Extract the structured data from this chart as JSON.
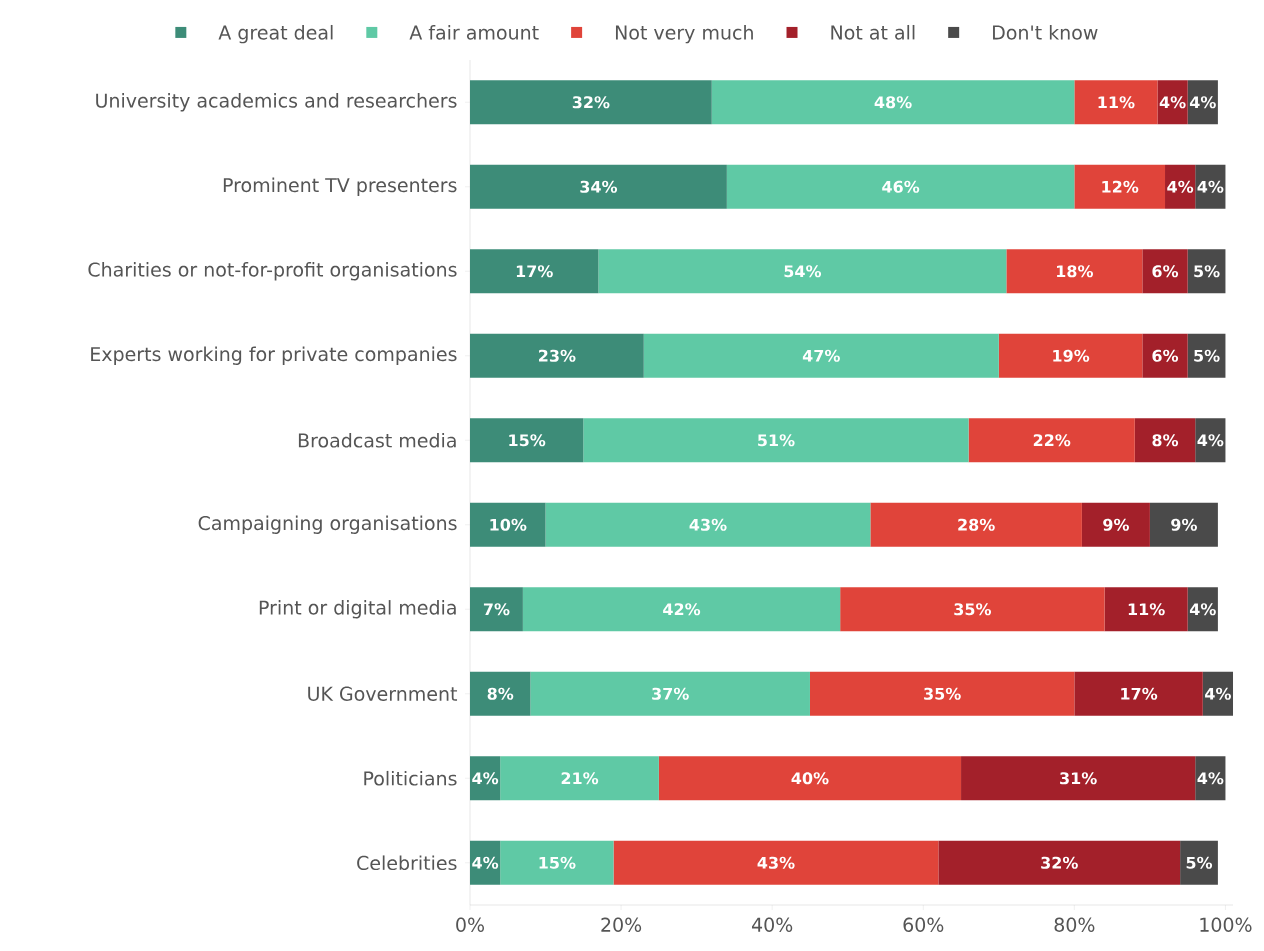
{
  "chart_data": {
    "type": "bar",
    "orientation": "horizontal",
    "stacked": true,
    "categories": [
      "University academics and researchers",
      "Prominent TV presenters",
      "Charities or not-for-profit organisations",
      "Experts working for private companies",
      "Broadcast media",
      "Campaigning organisations",
      "Print or digital media",
      "UK Government",
      "Politicians",
      "Celebrities"
    ],
    "series": [
      {
        "name": "A great deal",
        "color": "#3d8c78",
        "values": [
          32,
          34,
          17,
          23,
          15,
          10,
          7,
          8,
          4,
          4
        ],
        "value_labels": [
          "32%",
          "34%",
          "17%",
          "23%",
          "15%",
          "10%",
          "7%",
          "8%",
          "4%",
          "4%"
        ]
      },
      {
        "name": "A fair amount",
        "color": "#5fc9a5",
        "values": [
          48,
          46,
          54,
          47,
          51,
          43,
          42,
          37,
          21,
          15
        ],
        "value_labels": [
          "48%",
          "46%",
          "54%",
          "47%",
          "51%",
          "43%",
          "42%",
          "37%",
          "21%",
          "15%"
        ]
      },
      {
        "name": "Not very much",
        "color": "#e0443a",
        "values": [
          11,
          12,
          18,
          19,
          22,
          28,
          35,
          35,
          40,
          43
        ],
        "value_labels": [
          "11%",
          "12%",
          "18%",
          "19%",
          "22%",
          "28%",
          "35%",
          "35%",
          "40%",
          "43%"
        ]
      },
      {
        "name": "Not at all",
        "color": "#a3202a",
        "values": [
          4,
          4,
          6,
          6,
          8,
          9,
          11,
          17,
          31,
          32
        ],
        "value_labels": [
          "4%",
          "4%",
          "6%",
          "6%",
          "8%",
          "9%",
          "11%",
          "17%",
          "31%",
          "32%"
        ]
      },
      {
        "name": "Don't know",
        "color": "#4a4a4a",
        "values": [
          4,
          4,
          5,
          5,
          4,
          9,
          4,
          4,
          4,
          5
        ],
        "value_labels": [
          "4%",
          "4%",
          "5%",
          "5%",
          "4%",
          "9%",
          "4%",
          "4%",
          "4%",
          "5%"
        ]
      }
    ],
    "xlim": [
      0,
      101
    ],
    "xticks": [
      {
        "value": 0,
        "label": "0%"
      },
      {
        "value": 20,
        "label": "20%"
      },
      {
        "value": 40,
        "label": "40%"
      },
      {
        "value": 60,
        "label": "60%"
      },
      {
        "value": 80,
        "label": "80%"
      },
      {
        "value": 100,
        "label": "100%"
      }
    ],
    "legend": "top",
    "grid": false
  }
}
